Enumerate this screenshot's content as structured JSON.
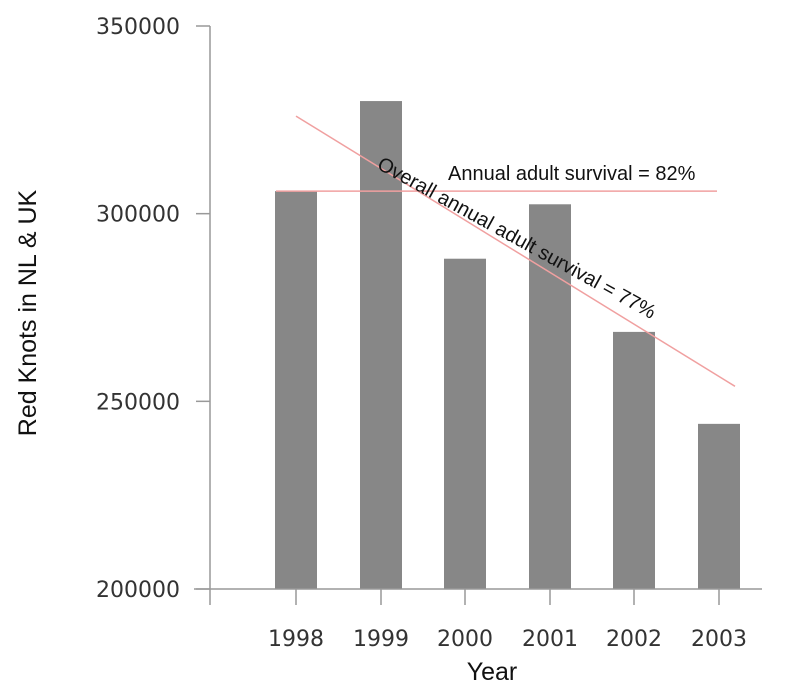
{
  "chart_data": {
    "type": "bar",
    "categories": [
      "1998",
      "1999",
      "2000",
      "2001",
      "2002",
      "2003"
    ],
    "values": [
      306000,
      330000,
      288000,
      302500,
      268500,
      244000
    ],
    "xlabel": "Year",
    "ylabel": "Red Knots in NL & UK",
    "ylim": [
      200000,
      350000
    ],
    "yticks": [
      "200000",
      "250000",
      "300000",
      "350000"
    ],
    "grid": false,
    "bar_color": "#878787",
    "annotations": [
      {
        "text": "Annual adult survival = 82%",
        "line": {
          "x_start": "1998",
          "x_end": "2003",
          "y_start": 306000,
          "y_end": 306000
        },
        "color": "#f0a0a0"
      },
      {
        "text": "Overall annual adult survival = 77%",
        "line": {
          "x_start": "1998",
          "x_end": "2003",
          "y_start": 326000,
          "y_end": 254000
        },
        "color": "#f0a0a0"
      }
    ]
  }
}
